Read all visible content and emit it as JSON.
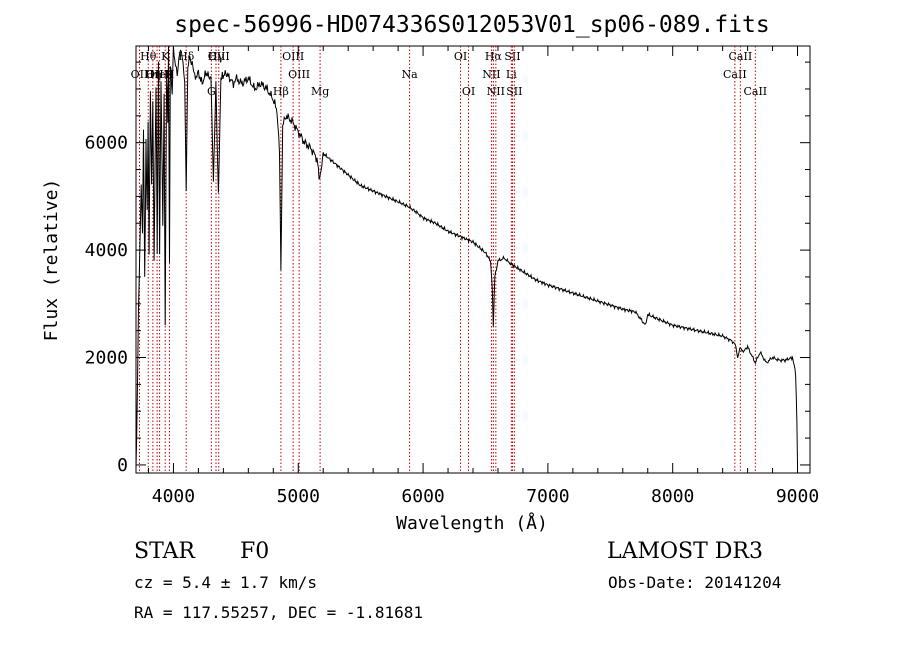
{
  "chart_data": {
    "type": "line",
    "title": "spec-56996-HD074336S012053V01_sp06-089.fits",
    "xlabel": "Wavelength (Å)",
    "ylabel": "Flux (relative)",
    "xlim": [
      3700,
      9100
    ],
    "ylim": [
      -150,
      7800
    ],
    "x_ticks": [
      4000,
      5000,
      6000,
      7000,
      8000,
      9000
    ],
    "y_ticks": [
      0,
      2000,
      4000,
      6000
    ],
    "series": [
      {
        "name": "spectrum",
        "x": [
          3700,
          3705,
          3712,
          3720,
          3730,
          3742,
          3752,
          3760,
          3770,
          3780,
          3790,
          3797,
          3805,
          3815,
          3825,
          3835,
          3845,
          3860,
          3870,
          3880,
          3889,
          3900,
          3915,
          3925,
          3934,
          3945,
          3955,
          3960,
          3968,
          3975,
          3990,
          4000,
          4010,
          4030,
          4050,
          4070,
          4090,
          4102,
          4115,
          4130,
          4150,
          4170,
          4200,
          4230,
          4260,
          4300,
          4320,
          4340,
          4360,
          4380,
          4420,
          4450,
          4480,
          4500,
          4550,
          4600,
          4650,
          4700,
          4750,
          4800,
          4830,
          4850,
          4861,
          4875,
          4900,
          4950,
          5000,
          5050,
          5100,
          5150,
          5172,
          5200,
          5300,
          5400,
          5500,
          5600,
          5700,
          5800,
          5890,
          5950,
          6000,
          6100,
          6200,
          6300,
          6400,
          6500,
          6540,
          6555,
          6563,
          6575,
          6600,
          6650,
          6700,
          6800,
          6900,
          7000,
          7200,
          7400,
          7600,
          7700,
          7750,
          7780,
          7800,
          8000,
          8200,
          8400,
          8480,
          8500,
          8520,
          8542,
          8560,
          8600,
          8662,
          8700,
          8750,
          8800,
          8850,
          8900,
          8960,
          8985,
          8995,
          9000
        ],
        "y": [
          0,
          400,
          1500,
          2900,
          3900,
          5200,
          4300,
          6200,
          3500,
          6000,
          4700,
          6400,
          3900,
          7000,
          5200,
          6700,
          3800,
          7100,
          4000,
          7500,
          3900,
          7200,
          4500,
          6900,
          2600,
          7300,
          6400,
          7800,
          3800,
          7500,
          6900,
          7800,
          7500,
          7300,
          7700,
          7600,
          7200,
          5100,
          7400,
          7600,
          7500,
          7200,
          7300,
          7100,
          7300,
          7200,
          5300,
          7100,
          5000,
          7200,
          7300,
          7200,
          7100,
          7200,
          7100,
          7200,
          7000,
          7100,
          7000,
          6800,
          6600,
          5800,
          3700,
          6300,
          6500,
          6400,
          6200,
          6000,
          5900,
          5700,
          5300,
          5800,
          5600,
          5400,
          5200,
          5100,
          5000,
          4900,
          4800,
          4700,
          4600,
          4500,
          4350,
          4250,
          4150,
          3950,
          3800,
          3300,
          2600,
          3500,
          3800,
          3850,
          3750,
          3600,
          3450,
          3350,
          3200,
          3050,
          2900,
          2850,
          2700,
          2600,
          2800,
          2600,
          2500,
          2400,
          2300,
          2250,
          2000,
          2200,
          2100,
          2200,
          1900,
          2100,
          1900,
          2000,
          1950,
          1950,
          2000,
          1700,
          800,
          0
        ]
      }
    ],
    "line_markers": [
      {
        "wave": 3728,
        "label": "OII",
        "row": 2
      },
      {
        "wave": 3798,
        "label": "Hθ",
        "row": 1
      },
      {
        "wave": 3835,
        "label": "Hη",
        "row": 2
      },
      {
        "wave": 3869,
        "label": "OIII",
        "row": 2
      },
      {
        "wave": 3889,
        "label": "HeI",
        "row": 2
      },
      {
        "wave": 3934,
        "label": "K",
        "row": 1
      },
      {
        "wave": 3968,
        "label": "H",
        "row": 2
      },
      {
        "wave": 4102,
        "label": "Hδ",
        "row": 1
      },
      {
        "wave": 4304,
        "label": "G",
        "row": 3
      },
      {
        "wave": 4341,
        "label": "Hγ",
        "row": 1
      },
      {
        "wave": 4363,
        "label": "OIII",
        "row": 1
      },
      {
        "wave": 4861,
        "label": "Hβ",
        "row": 3
      },
      {
        "wave": 4959,
        "label": "OIII",
        "row": 1
      },
      {
        "wave": 5007,
        "label": "OIII",
        "row": 2
      },
      {
        "wave": 5175,
        "label": "Mg",
        "row": 3
      },
      {
        "wave": 5892,
        "label": "Na",
        "row": 2
      },
      {
        "wave": 6300,
        "label": "OI",
        "row": 1
      },
      {
        "wave": 6364,
        "label": "OI",
        "row": 3
      },
      {
        "wave": 6548,
        "label": "NII",
        "row": 2
      },
      {
        "wave": 6563,
        "label": "Hα",
        "row": 1
      },
      {
        "wave": 6583,
        "label": "NII",
        "row": 3
      },
      {
        "wave": 6707,
        "label": "Li",
        "row": 2
      },
      {
        "wave": 6716,
        "label": "SII",
        "row": 1
      },
      {
        "wave": 6731,
        "label": "SII",
        "row": 3
      },
      {
        "wave": 8498,
        "label": "CaII",
        "row": 2
      },
      {
        "wave": 8542,
        "label": "CaII",
        "row": 1
      },
      {
        "wave": 8662,
        "label": "CaII",
        "row": 3
      }
    ]
  },
  "info": {
    "object_class": "STAR",
    "subclass": "F0",
    "survey": "LAMOST DR3",
    "redshift": "cz = 5.4 ± 1.7 km/s",
    "obs_date": "Obs-Date: 20141204",
    "coords": "RA = 117.55257, DEC =  -1.81681"
  }
}
